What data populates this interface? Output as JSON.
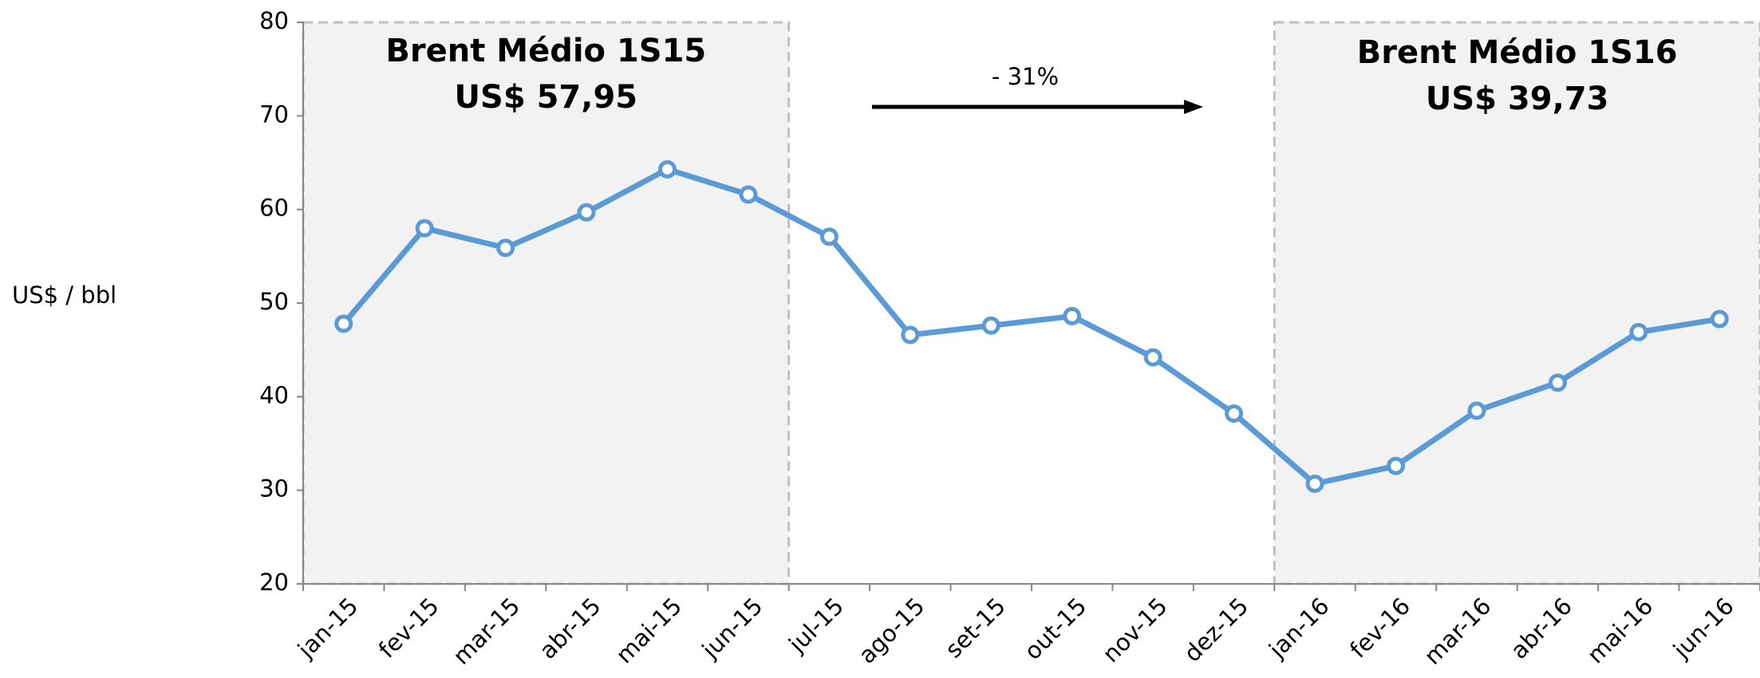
{
  "chart_data": {
    "type": "line",
    "ylabel": "US$ / bbl",
    "categories": [
      "jan-15",
      "fev-15",
      "mar-15",
      "abr-15",
      "mai-15",
      "jun-15",
      "jul-15",
      "ago-15",
      "set-15",
      "out-15",
      "nov-15",
      "dez-15",
      "jan-16",
      "fev-16",
      "mar-16",
      "abr-16",
      "mai-16",
      "jun-16"
    ],
    "series": [
      {
        "name": "Brent",
        "color": "#5b9bd5",
        "values": [
          47.8,
          58.0,
          55.9,
          59.7,
          64.3,
          61.6,
          57.1,
          46.6,
          47.6,
          48.6,
          44.2,
          38.2,
          30.7,
          32.6,
          38.5,
          41.5,
          46.9,
          48.3
        ]
      }
    ],
    "ylim": [
      20,
      80
    ],
    "yticks": [
      20,
      30,
      40,
      50,
      60,
      70,
      80
    ],
    "annotations": [
      "Brent Médio 1S15",
      "US$ 57,95",
      "- 31%",
      "Brent Médio 1S16",
      "US$ 39,73"
    ]
  }
}
